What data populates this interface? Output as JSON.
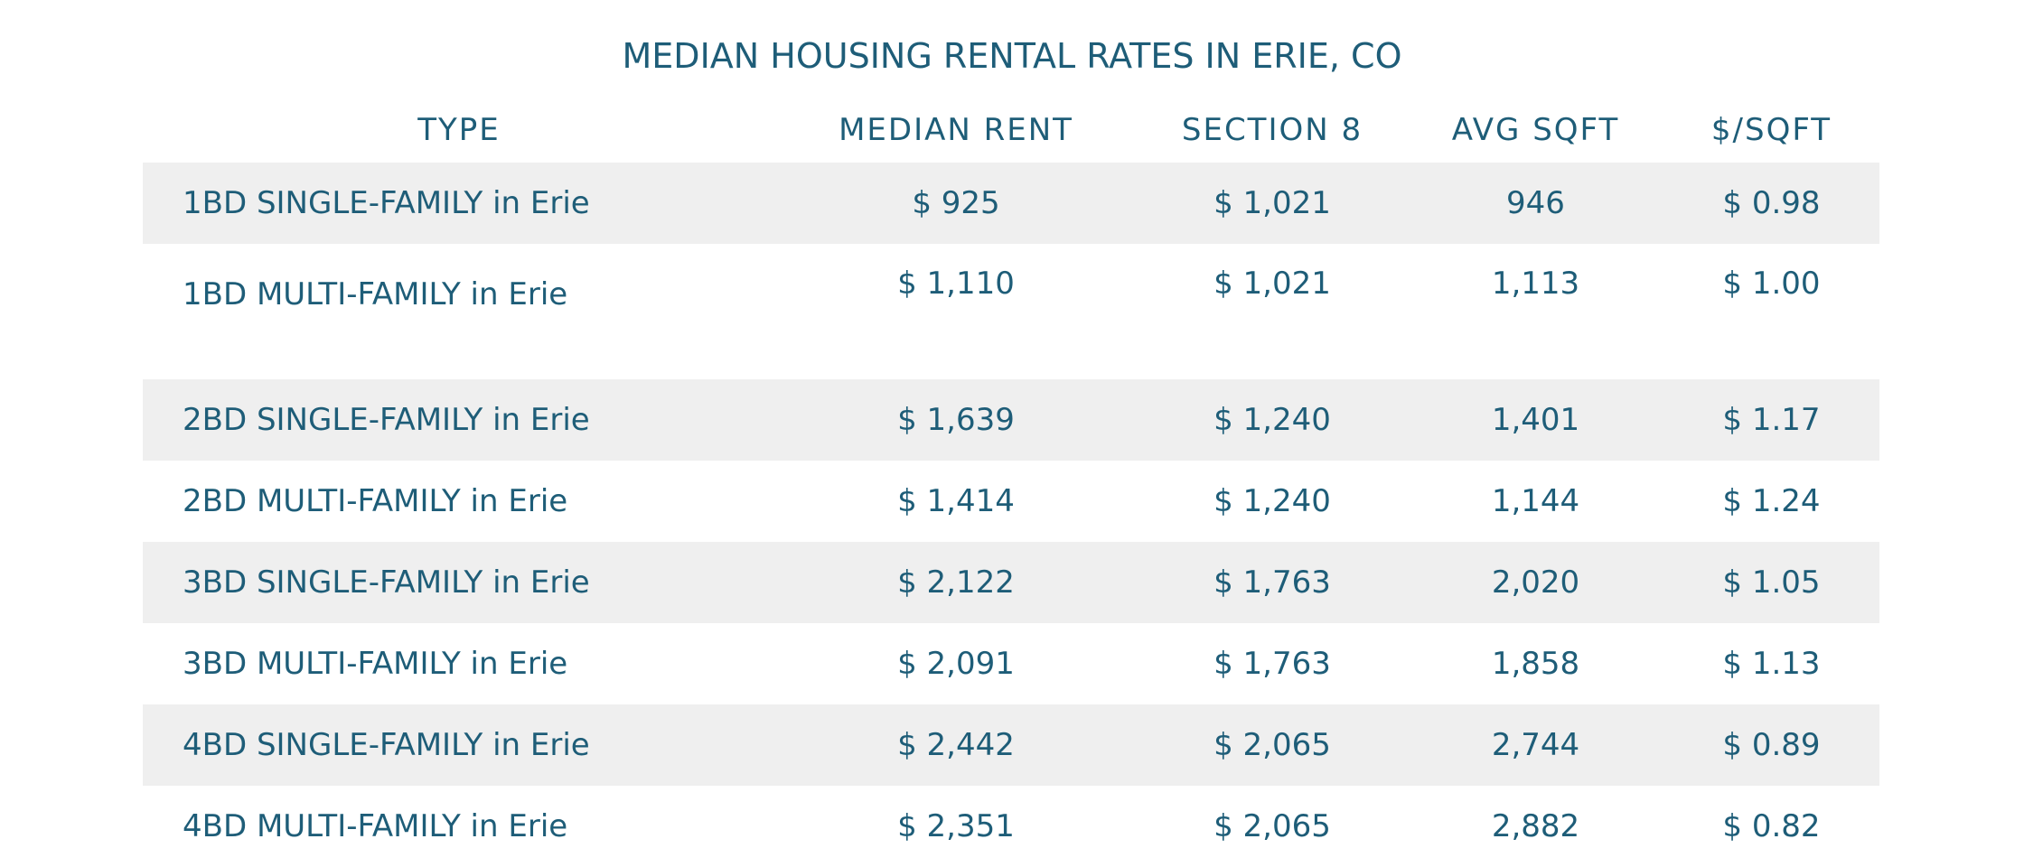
{
  "chart_data": {
    "type": "table",
    "title": "MEDIAN HOUSING RENTAL RATES IN ERIE, CO",
    "columns": [
      "TYPE",
      "MEDIAN RENT",
      "SECTION 8",
      "AVG SQFT",
      "$/SQFT"
    ],
    "rows": [
      [
        "1BD SINGLE-FAMILY in Erie",
        "$ 925",
        "$ 1,021",
        "946",
        "$ 0.98"
      ],
      [
        "1BD MULTI-FAMILY in Erie",
        "$ 1,110",
        "$ 1,021",
        "1,113",
        "$ 1.00"
      ],
      [
        "2BD SINGLE-FAMILY in Erie",
        "$ 1,639",
        "$ 1,240",
        "1,401",
        "$ 1.17"
      ],
      [
        "2BD MULTI-FAMILY in Erie",
        "$ 1,414",
        "$ 1,240",
        "1,144",
        "$ 1.24"
      ],
      [
        "3BD SINGLE-FAMILY in Erie",
        "$ 2,122",
        "$ 1,763",
        "2,020",
        "$ 1.05"
      ],
      [
        "3BD MULTI-FAMILY in Erie",
        "$ 2,091",
        "$ 1,763",
        "1,858",
        "$ 1.13"
      ],
      [
        "4BD SINGLE-FAMILY in Erie",
        "$ 2,442",
        "$ 2,065",
        "2,744",
        "$ 0.89"
      ],
      [
        "4BD MULTI-FAMILY in Erie",
        "$ 2,351",
        "$ 2,065",
        "2,882",
        "$ 0.82"
      ]
    ],
    "values": {
      "median_rent": [
        925,
        1110,
        1639,
        1414,
        2122,
        2091,
        2442,
        2351
      ],
      "section_8": [
        1021,
        1021,
        1240,
        1240,
        1763,
        1763,
        2065,
        2065
      ],
      "avg_sqft": [
        946,
        1113,
        1401,
        1144,
        2020,
        1858,
        2744,
        2882
      ],
      "price_per_sqft": [
        0.98,
        1.0,
        1.17,
        1.24,
        1.05,
        1.13,
        0.89,
        0.82
      ]
    }
  },
  "colors": {
    "text": "#1e5d78",
    "stripe": "#efefef",
    "background": "#ffffff"
  }
}
